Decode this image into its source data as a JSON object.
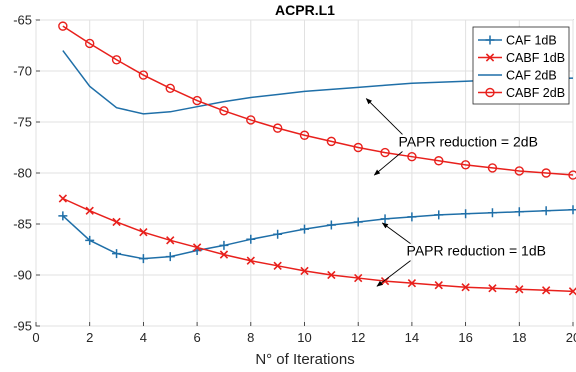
{
  "chart_data": {
    "type": "line",
    "title": "ACPR.L1",
    "xlabel": "N° of Iterations",
    "ylabel": "",
    "xlim": [
      0,
      20
    ],
    "ylim": [
      -95,
      -65
    ],
    "xticks": [
      0,
      2,
      4,
      6,
      8,
      10,
      12,
      14,
      16,
      18,
      20
    ],
    "yticks": [
      -95,
      -90,
      -85,
      -80,
      -75,
      -70,
      -65
    ],
    "grid": true,
    "legend_position": "top-right",
    "x": [
      1,
      2,
      3,
      4,
      5,
      6,
      7,
      8,
      9,
      10,
      11,
      12,
      13,
      14,
      15,
      16,
      17,
      18,
      19,
      20
    ],
    "series": [
      {
        "name": "CAF 1dB",
        "color": "#1f6fa8",
        "marker": "plus",
        "values": [
          -84.2,
          -86.6,
          -87.9,
          -88.4,
          -88.2,
          -87.6,
          -87.1,
          -86.5,
          -86.0,
          -85.5,
          -85.1,
          -84.8,
          -84.5,
          -84.3,
          -84.1,
          -84.0,
          -83.9,
          -83.8,
          -83.7,
          -83.6
        ]
      },
      {
        "name": "CABF 1dB",
        "color": "#e8201c",
        "marker": "x",
        "values": [
          -82.5,
          -83.7,
          -84.8,
          -85.8,
          -86.6,
          -87.3,
          -88.0,
          -88.6,
          -89.1,
          -89.6,
          -90.0,
          -90.3,
          -90.6,
          -90.8,
          -91.0,
          -91.2,
          -91.3,
          -91.4,
          -91.5,
          -91.6
        ]
      },
      {
        "name": "CAF 2dB",
        "color": "#1f6fa8",
        "marker": "none",
        "values": [
          -68.0,
          -71.5,
          -73.6,
          -74.2,
          -74.0,
          -73.5,
          -73.0,
          -72.6,
          -72.3,
          -72.0,
          -71.8,
          -71.6,
          -71.4,
          -71.2,
          -71.1,
          -71.0,
          -70.9,
          -70.8,
          -70.75,
          -70.7
        ]
      },
      {
        "name": "CABF 2dB",
        "color": "#e8201c",
        "marker": "circle",
        "values": [
          -65.6,
          -67.3,
          -68.9,
          -70.4,
          -71.7,
          -72.9,
          -73.9,
          -74.8,
          -75.6,
          -76.3,
          -76.9,
          -77.5,
          -78.0,
          -78.4,
          -78.8,
          -79.2,
          -79.5,
          -79.8,
          -80.0,
          -80.2
        ]
      }
    ],
    "annotations": [
      {
        "text": "PAPR reduction = 2dB",
        "x": 13.5,
        "y": -77.4,
        "arrows": [
          [
            12.3,
            -72.7
          ],
          [
            12.6,
            -80.2
          ]
        ]
      },
      {
        "text": "PAPR reduction = 1dB",
        "x": 13.8,
        "y": -88.1,
        "arrows": [
          [
            12.9,
            -84.9
          ],
          [
            12.7,
            -91.1
          ]
        ]
      }
    ]
  }
}
